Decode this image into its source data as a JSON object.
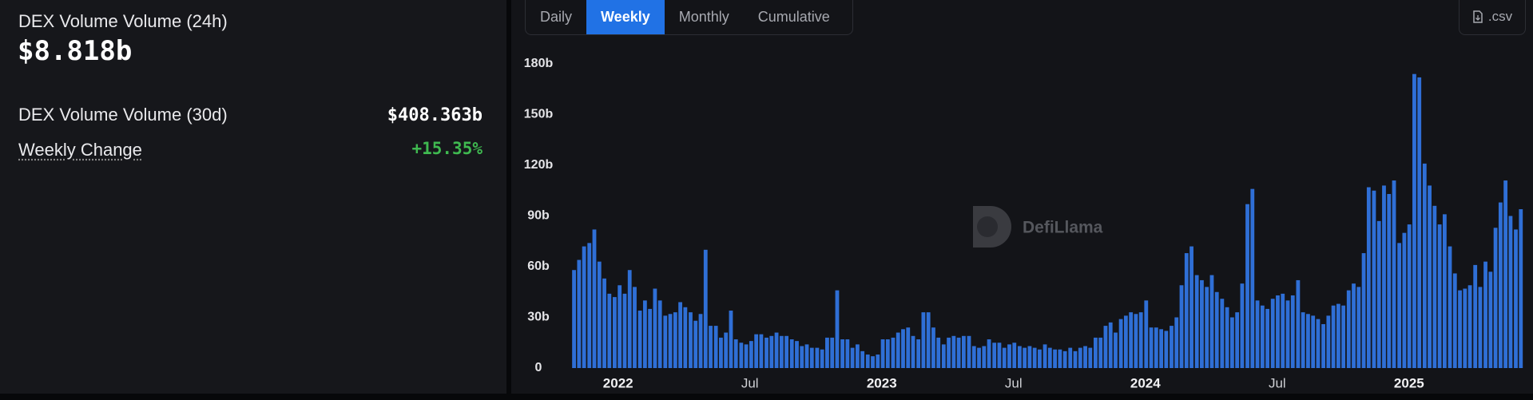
{
  "summary": {
    "volume_24h_label": "DEX Volume Volume (24h)",
    "volume_24h_value": "$8.818b",
    "volume_30d_label": "DEX Volume Volume (30d)",
    "volume_30d_value": "$408.363b",
    "weekly_change_label": "Weekly Change",
    "weekly_change_value": "+15.35%"
  },
  "controls": {
    "tabs": [
      "Daily",
      "Weekly",
      "Monthly",
      "Cumulative"
    ],
    "active_tab": 1,
    "csv": ".csv"
  },
  "chart_data": {
    "type": "bar",
    "watermark": "DefiLlama",
    "color": "#2f6fd6",
    "grid": false,
    "x": [
      2021.833,
      2021.852,
      2021.871,
      2021.891,
      2021.91,
      2021.929,
      2021.948,
      2021.967,
      2021.987,
      2022.006,
      2022.025,
      2022.044,
      2022.063,
      2022.083,
      2022.102,
      2022.121,
      2022.14,
      2022.159,
      2022.179,
      2022.198,
      2022.217,
      2022.236,
      2022.255,
      2022.275,
      2022.294,
      2022.313,
      2022.332,
      2022.351,
      2022.371,
      2022.39,
      2022.409,
      2022.428,
      2022.447,
      2022.467,
      2022.486,
      2022.505,
      2022.524,
      2022.543,
      2022.563,
      2022.582,
      2022.601,
      2022.62,
      2022.639,
      2022.659,
      2022.678,
      2022.697,
      2022.716,
      2022.735,
      2022.755,
      2022.774,
      2022.793,
      2022.812,
      2022.831,
      2022.851,
      2022.87,
      2022.889,
      2022.908,
      2022.927,
      2022.947,
      2022.966,
      2022.985,
      2023.004,
      2023.023,
      2023.043,
      2023.062,
      2023.081,
      2023.1,
      2023.119,
      2023.139,
      2023.158,
      2023.177,
      2023.196,
      2023.215,
      2023.235,
      2023.254,
      2023.273,
      2023.292,
      2023.311,
      2023.331,
      2023.35,
      2023.369,
      2023.388,
      2023.407,
      2023.427,
      2023.446,
      2023.465,
      2023.484,
      2023.503,
      2023.523,
      2023.542,
      2023.561,
      2023.58,
      2023.599,
      2023.619,
      2023.638,
      2023.657,
      2023.676,
      2023.695,
      2023.715,
      2023.734,
      2023.753,
      2023.772,
      2023.791,
      2023.811,
      2023.83,
      2023.849,
      2023.868,
      2023.887,
      2023.907,
      2023.926,
      2023.945,
      2023.964,
      2023.983,
      2024.003,
      2024.022,
      2024.041,
      2024.06,
      2024.079,
      2024.099,
      2024.118,
      2024.137,
      2024.156,
      2024.175,
      2024.195,
      2024.214,
      2024.233,
      2024.252,
      2024.271,
      2024.291,
      2024.31,
      2024.329,
      2024.348,
      2024.367,
      2024.387,
      2024.406,
      2024.425,
      2024.444,
      2024.463,
      2024.483,
      2024.502,
      2024.521,
      2024.54,
      2024.559,
      2024.579,
      2024.598,
      2024.617,
      2024.636,
      2024.655,
      2024.675,
      2024.694,
      2024.713,
      2024.732,
      2024.751,
      2024.771,
      2024.79,
      2024.809,
      2024.828,
      2024.847,
      2024.867,
      2024.886,
      2024.905,
      2024.924,
      2024.943,
      2024.963,
      2024.982,
      2025.001,
      2025.02,
      2025.039,
      2025.059,
      2025.078,
      2025.097,
      2025.116,
      2025.135,
      2025.155,
      2025.174,
      2025.193,
      2025.212,
      2025.231,
      2025.251,
      2025.27,
      2025.29,
      2025.309,
      2025.328,
      2025.347,
      2025.366,
      2025.385,
      2025.405,
      2025.424
    ],
    "values": [
      58,
      64,
      72,
      74,
      82,
      63,
      53,
      44,
      42,
      49,
      44,
      58,
      48,
      34,
      40,
      35,
      47,
      40,
      31,
      32,
      33,
      39,
      36,
      33,
      28,
      32,
      70,
      25,
      25,
      18,
      21,
      34,
      17,
      15,
      14,
      16,
      20,
      20,
      18,
      19,
      21,
      19,
      19,
      17,
      16,
      13,
      14,
      12,
      12,
      11,
      18,
      18,
      46,
      17,
      17,
      12,
      14,
      10,
      8,
      7,
      8,
      17,
      17,
      18,
      21,
      23,
      24,
      19,
      17,
      33,
      33,
      24,
      18,
      14,
      18,
      19,
      18,
      19,
      19,
      13,
      12,
      13,
      17,
      15,
      15,
      12,
      14,
      15,
      13,
      12,
      13,
      12,
      11,
      14,
      12,
      11,
      11,
      10,
      12,
      10,
      12,
      13,
      12,
      18,
      18,
      25,
      27,
      21,
      29,
      31,
      33,
      32,
      33,
      40,
      24,
      24,
      23,
      22,
      25,
      30,
      49,
      68,
      72,
      55,
      52,
      48,
      55,
      45,
      41,
      36,
      30,
      33,
      50,
      97,
      106,
      40,
      37,
      35,
      41,
      43,
      44,
      40,
      43,
      52,
      33,
      32,
      31,
      29,
      26,
      31,
      37,
      38,
      37,
      46,
      50,
      48,
      68,
      107,
      105,
      87,
      108,
      103,
      111,
      74,
      80,
      85,
      174,
      172,
      121,
      108,
      96,
      85,
      91,
      72,
      56,
      46,
      47,
      49,
      61,
      48,
      63,
      57,
      83,
      98,
      111,
      90,
      82,
      94
    ],
    "xlim": [
      2021.807,
      2025.458
    ],
    "xticks": [
      2022,
      {
        "value": 2022.5,
        "label": "Jul"
      },
      2023,
      {
        "value": 2023.5,
        "label": "Jul"
      },
      2024,
      {
        "value": 2024.5,
        "label": "Jul"
      },
      2025
    ],
    "ylim": [
      0,
      180
    ],
    "yticks": [
      0,
      {
        "value": 30,
        "label": "30b"
      },
      {
        "value": 60,
        "label": "60b"
      },
      {
        "value": 90,
        "label": "90b"
      },
      {
        "value": 120,
        "label": "120b"
      },
      {
        "value": 150,
        "label": "150b"
      },
      {
        "value": 180,
        "label": "180b"
      }
    ]
  }
}
